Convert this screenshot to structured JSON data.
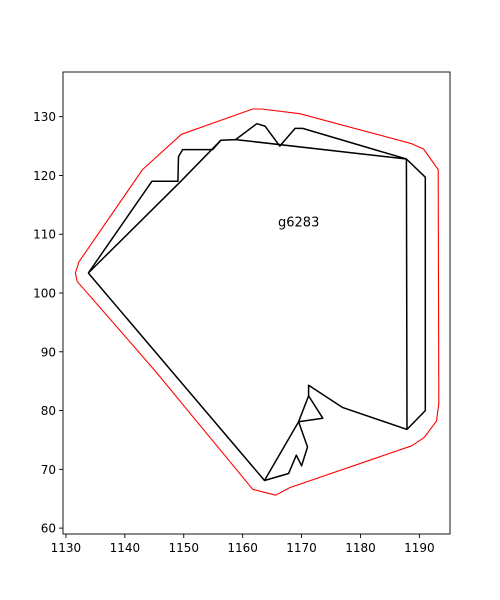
{
  "chart_data": {
    "type": "polygon-plot",
    "annotation": "g6283",
    "annotation_position": [
      1166.0,
      112.0
    ],
    "xlim": [
      1129.5,
      1195.2
    ],
    "ylim": [
      59.0,
      137.6
    ],
    "xticks": [
      1130,
      1140,
      1150,
      1160,
      1170,
      1180,
      1190
    ],
    "yticks": [
      60,
      70,
      80,
      90,
      100,
      110,
      120,
      130
    ],
    "grid": false,
    "series": [
      {
        "color": "#ff0000",
        "width": 1.1,
        "closed": false,
        "points": [
          [
            1131.9,
            102.0
          ],
          [
            1131.6,
            103.4
          ],
          [
            1132.2,
            105.3
          ],
          [
            1143.0,
            121.0
          ],
          [
            1149.6,
            127.0
          ],
          [
            1161.7,
            131.3
          ],
          [
            1163.2,
            131.3
          ],
          [
            1169.7,
            130.5
          ],
          [
            1188.7,
            125.4
          ],
          [
            1190.7,
            124.5
          ],
          [
            1193.2,
            121.0
          ],
          [
            1193.3,
            81.2
          ],
          [
            1192.9,
            78.2
          ],
          [
            1190.8,
            75.4
          ],
          [
            1188.7,
            74.0
          ],
          [
            1168.0,
            66.9
          ],
          [
            1165.6,
            65.6
          ],
          [
            1161.7,
            66.6
          ],
          [
            1145.1,
            86.8
          ],
          [
            1131.9,
            102.0
          ]
        ]
      },
      {
        "color": "#000000",
        "width": 1.5,
        "closed": false,
        "points": [
          [
            1133.8,
            103.4
          ],
          [
            1149.5,
            119.0
          ],
          [
            1156.3,
            126.0
          ],
          [
            1158.8,
            126.1
          ],
          [
            1187.8,
            122.8
          ],
          [
            1191.0,
            119.7
          ],
          [
            1191.0,
            80.0
          ],
          [
            1187.9,
            76.8
          ],
          [
            1177.0,
            80.5
          ],
          [
            1171.2,
            84.3
          ],
          [
            1171.2,
            82.5
          ],
          [
            1173.6,
            78.7
          ],
          [
            1169.5,
            78.1
          ],
          [
            1171.0,
            73.8
          ],
          [
            1170.0,
            70.6
          ],
          [
            1169.1,
            72.4
          ],
          [
            1167.8,
            69.3
          ],
          [
            1163.7,
            68.1
          ],
          [
            1133.8,
            103.4
          ]
        ]
      },
      {
        "color": "#000000",
        "width": 1.5,
        "closed": false,
        "points": [
          [
            1133.8,
            103.4
          ],
          [
            1144.6,
            119.0
          ],
          [
            1149.0,
            119.0
          ],
          [
            1149.1,
            123.2
          ],
          [
            1149.8,
            124.4
          ],
          [
            1154.9,
            124.4
          ],
          [
            1156.3,
            126.0
          ]
        ]
      },
      {
        "color": "#000000",
        "width": 1.5,
        "closed": false,
        "points": [
          [
            1158.8,
            126.1
          ],
          [
            1162.4,
            128.8
          ],
          [
            1163.8,
            128.4
          ],
          [
            1166.3,
            125.0
          ],
          [
            1168.9,
            128.0
          ],
          [
            1170.2,
            128.0
          ],
          [
            1187.8,
            122.8
          ],
          [
            1187.9,
            76.8
          ]
        ]
      },
      {
        "color": "#000000",
        "width": 1.5,
        "closed": false,
        "points": [
          [
            1171.2,
            82.5
          ],
          [
            1169.5,
            78.1
          ],
          [
            1163.7,
            68.1
          ]
        ]
      }
    ]
  }
}
